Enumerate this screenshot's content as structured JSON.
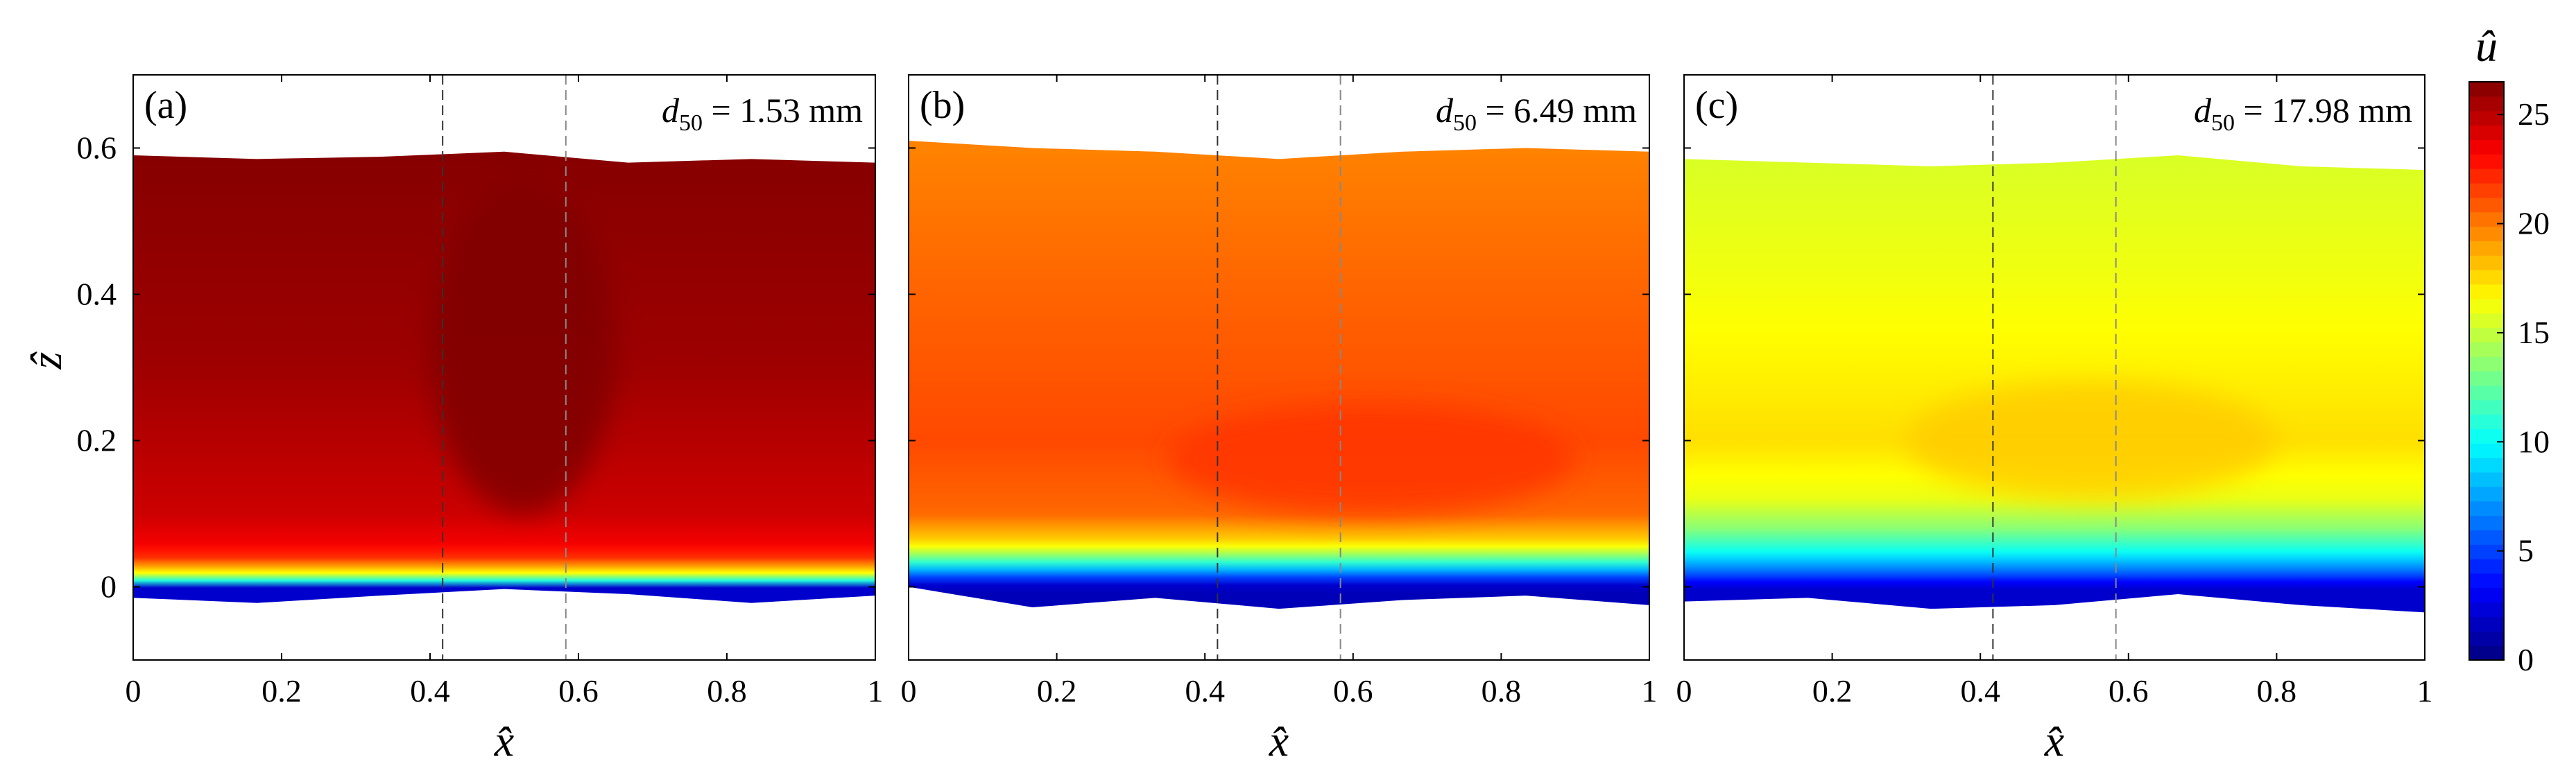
{
  "chart_data": {
    "type": "contour",
    "colorbar": {
      "label": "û",
      "min": 0,
      "max": 26.5,
      "ticks": [
        0,
        5,
        10,
        15,
        20,
        25
      ]
    },
    "shared_axes": {
      "xlabel": "x̂",
      "ylabel": "ẑ",
      "xlim": [
        0,
        1
      ],
      "ylim": [
        -0.1,
        0.7
      ],
      "xticks": [
        0,
        0.2,
        0.4,
        0.6,
        0.8,
        1
      ],
      "xtick_labels": [
        "0",
        "0.2",
        "0.4",
        "0.6",
        "0.8",
        "1"
      ],
      "yticks": [
        0,
        0.2,
        0.4,
        0.6
      ],
      "ytick_labels": [
        "0",
        "0.2",
        "0.4",
        "0.6"
      ],
      "reference_lines_x": [
        0.417,
        0.583
      ]
    },
    "panels": [
      {
        "tag": "(a)",
        "annotation": {
          "var": "d",
          "sub": "50",
          "text": " = 1.53 mm"
        },
        "description": "Dark red field throughout; strong gradient near the bed",
        "top_boundary": {
          "x": [
            0,
            0.167,
            0.333,
            0.5,
            0.667,
            0.833,
            1
          ],
          "z": [
            0.59,
            0.585,
            0.588,
            0.595,
            0.58,
            0.585,
            0.58
          ]
        },
        "bottom_boundary": {
          "x": [
            0,
            0.167,
            0.333,
            0.5,
            0.667,
            0.833,
            1
          ],
          "z": [
            -0.015,
            -0.022,
            -0.012,
            -0.003,
            -0.01,
            -0.022,
            -0.012
          ]
        },
        "u_levels_by_z": {
          "z": [
            0.0,
            0.01,
            0.02,
            0.04,
            0.06,
            0.1,
            0.3,
            0.58
          ],
          "u": [
            2,
            12,
            17,
            22,
            23.5,
            24.5,
            25.7,
            26.3
          ]
        },
        "core_max_region": {
          "u": 26.8,
          "x": [
            0.4,
            0.65
          ],
          "z": [
            0.1,
            0.55
          ]
        }
      },
      {
        "tag": "(b)",
        "annotation": {
          "var": "d",
          "sub": "50",
          "text": " = 6.49 mm"
        },
        "description": "Orange field with a slightly faster core near z = 0.15",
        "top_boundary": {
          "x": [
            0,
            0.167,
            0.333,
            0.5,
            0.667,
            0.833,
            1
          ],
          "z": [
            0.61,
            0.6,
            0.595,
            0.585,
            0.595,
            0.6,
            0.595
          ]
        },
        "bottom_boundary": {
          "x": [
            0,
            0.167,
            0.333,
            0.5,
            0.667,
            0.833,
            1
          ],
          "z": [
            0.0,
            -0.028,
            -0.015,
            -0.03,
            -0.018,
            -0.012,
            -0.025
          ]
        },
        "u_levels_by_z": {
          "z": [
            0.0,
            0.02,
            0.04,
            0.06,
            0.1,
            0.2,
            0.4,
            0.6
          ],
          "u": [
            1.5,
            7,
            13,
            17.5,
            20.5,
            21.3,
            20.6,
            19.8
          ]
        },
        "core_max_region": {
          "u": 21.8,
          "x": [
            0.35,
            0.9
          ],
          "z": [
            0.1,
            0.25
          ]
        }
      },
      {
        "tag": "(c)",
        "annotation": {
          "var": "d",
          "sub": "50",
          "text": " = 17.98 mm"
        },
        "description": "Yellow-green field with a broad yellow core near z = 0.2",
        "top_boundary": {
          "x": [
            0,
            0.167,
            0.333,
            0.5,
            0.667,
            0.833,
            1
          ],
          "z": [
            0.585,
            0.58,
            0.575,
            0.58,
            0.59,
            0.575,
            0.57
          ]
        },
        "bottom_boundary": {
          "x": [
            0,
            0.167,
            0.333,
            0.5,
            0.667,
            0.833,
            1
          ],
          "z": [
            -0.02,
            -0.015,
            -0.03,
            -0.025,
            -0.01,
            -0.025,
            -0.035
          ]
        },
        "u_levels_by_z": {
          "z": [
            0.0,
            0.02,
            0.05,
            0.08,
            0.12,
            0.2,
            0.4,
            0.58
          ],
          "u": [
            2,
            6,
            10.5,
            13.5,
            16,
            17.4,
            16.3,
            15.6
          ]
        },
        "core_max_region": {
          "u": 17.9,
          "x": [
            0.3,
            0.8
          ],
          "z": [
            0.12,
            0.28
          ]
        }
      }
    ]
  }
}
